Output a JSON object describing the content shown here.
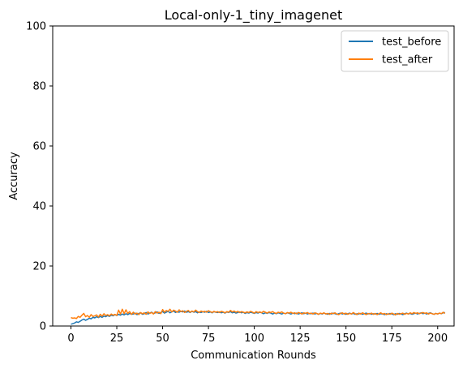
{
  "chart_data": {
    "type": "line",
    "title": "Local-only-1_tiny_imagenet",
    "xlabel": "Communication Rounds",
    "ylabel": "Accuracy",
    "xlim": [
      -9.95,
      208.95
    ],
    "ylim": [
      0,
      100
    ],
    "xticks": [
      0,
      25,
      50,
      75,
      100,
      125,
      150,
      175,
      200
    ],
    "yticks": [
      0,
      20,
      40,
      60,
      80,
      100
    ],
    "grid": false,
    "legend": "top-right",
    "x_start": 0,
    "x_step": 1,
    "series": [
      {
        "name": "test_before",
        "color": "#1f77b4",
        "values": [
          0.6,
          0.8,
          1.0,
          1.4,
          1.2,
          1.6,
          2.0,
          2.3,
          1.9,
          2.2,
          2.6,
          2.4,
          2.9,
          2.7,
          3.1,
          2.8,
          3.2,
          2.9,
          3.3,
          3.1,
          3.5,
          3.2,
          3.6,
          3.4,
          3.8,
          3.5,
          3.9,
          3.6,
          4.0,
          3.7,
          4.1,
          3.8,
          4.2,
          3.9,
          4.0,
          4.3,
          3.8,
          4.2,
          4.4,
          3.9,
          4.1,
          4.5,
          4.0,
          4.3,
          4.6,
          4.1,
          4.4,
          4.7,
          4.2,
          4.5,
          4.8,
          4.3,
          4.6,
          4.9,
          4.4,
          4.7,
          5.0,
          4.5,
          4.8,
          4.6,
          4.9,
          4.7,
          5.0,
          4.6,
          4.8,
          4.5,
          4.9,
          4.6,
          4.8,
          4.4,
          4.7,
          4.5,
          4.8,
          4.6,
          4.9,
          4.5,
          4.7,
          4.4,
          4.8,
          4.6,
          4.5,
          4.7,
          4.4,
          4.6,
          4.3,
          4.7,
          4.5,
          4.8,
          4.4,
          4.6,
          4.3,
          4.5,
          4.7,
          4.4,
          4.6,
          4.2,
          4.5,
          4.3,
          4.6,
          4.4,
          4.2,
          4.5,
          4.3,
          4.6,
          4.4,
          4.1,
          4.4,
          4.2,
          4.5,
          4.3,
          4.0,
          4.3,
          4.1,
          4.4,
          4.2,
          4.0,
          4.3,
          4.1,
          4.4,
          4.2,
          4.0,
          4.3,
          4.1,
          4.3,
          4.0,
          4.2,
          4.4,
          4.1,
          4.3,
          4.0,
          4.2,
          4.1,
          4.3,
          4.0,
          4.2,
          3.9,
          4.2,
          4.0,
          4.3,
          4.1,
          3.9,
          4.2,
          4.0,
          4.3,
          4.1,
          3.9,
          4.1,
          4.3,
          4.0,
          4.2,
          3.9,
          4.1,
          4.3,
          4.0,
          4.2,
          3.9,
          4.1,
          4.0,
          4.2,
          3.9,
          4.1,
          4.3,
          4.0,
          4.2,
          3.9,
          4.1,
          4.0,
          4.2,
          3.9,
          4.1,
          4.0,
          3.8,
          4.1,
          3.9,
          4.2,
          4.0,
          3.8,
          4.1,
          3.9,
          4.2,
          4.0,
          3.8,
          4.1,
          4.3,
          4.0,
          4.2,
          3.9,
          4.1,
          4.3,
          4.0,
          4.2,
          4.4,
          4.1,
          4.3,
          4.0,
          4.2,
          4.4,
          4.1,
          3.9,
          4.2,
          4.0,
          4.3,
          4.1,
          4.4,
          4.5
        ]
      },
      {
        "name": "test_after",
        "color": "#ff7f0e",
        "values": [
          2.8,
          2.6,
          2.7,
          2.5,
          3.2,
          2.9,
          3.6,
          4.2,
          3.1,
          3.5,
          2.9,
          3.8,
          3.2,
          3.4,
          3.7,
          3.0,
          3.9,
          3.3,
          4.1,
          3.5,
          3.8,
          3.4,
          4.0,
          3.6,
          3.9,
          3.5,
          5.3,
          4.0,
          5.6,
          4.1,
          5.4,
          4.2,
          4.8,
          3.9,
          4.6,
          4.0,
          4.3,
          3.8,
          4.5,
          4.1,
          4.4,
          3.9,
          4.7,
          4.2,
          4.5,
          4.0,
          4.8,
          4.3,
          4.6,
          4.1,
          5.5,
          4.6,
          5.2,
          4.9,
          5.6,
          4.7,
          5.3,
          5.0,
          4.6,
          5.4,
          4.8,
          5.1,
          4.5,
          4.9,
          5.2,
          4.6,
          5.0,
          4.7,
          5.3,
          4.8,
          4.5,
          5.0,
          4.7,
          4.9,
          4.6,
          5.1,
          4.8,
          4.5,
          4.9,
          4.6,
          4.8,
          4.5,
          4.9,
          4.7,
          4.4,
          4.8,
          4.6,
          5.2,
          4.7,
          5.0,
          4.6,
          4.9,
          4.5,
          4.8,
          4.6,
          4.4,
          4.7,
          4.5,
          4.9,
          4.6,
          4.3,
          4.8,
          4.5,
          4.7,
          4.4,
          4.9,
          4.6,
          4.3,
          4.7,
          4.5,
          4.8,
          4.4,
          4.2,
          4.6,
          4.4,
          4.7,
          4.3,
          4.1,
          4.5,
          4.3,
          4.6,
          4.2,
          4.4,
          4.1,
          4.5,
          4.3,
          4.0,
          4.4,
          4.2,
          4.5,
          4.1,
          4.3,
          4.0,
          4.4,
          4.2,
          3.9,
          4.3,
          4.1,
          4.4,
          4.0,
          4.2,
          3.9,
          4.3,
          4.1,
          4.4,
          4.0,
          3.8,
          4.2,
          4.4,
          4.0,
          4.3,
          3.9,
          4.2,
          4.0,
          4.5,
          4.1,
          3.8,
          4.3,
          4.0,
          4.4,
          4.1,
          3.8,
          4.2,
          4.0,
          4.3,
          3.9,
          4.2,
          3.8,
          4.1,
          4.4,
          4.0,
          4.2,
          3.8,
          4.1,
          3.9,
          4.3,
          4.0,
          3.7,
          4.2,
          3.9,
          4.1,
          4.3,
          3.9,
          4.2,
          4.0,
          4.4,
          4.1,
          4.5,
          4.2,
          4.4,
          4.1,
          4.3,
          4.5,
          4.2,
          4.4,
          4.0,
          4.3,
          4.1,
          3.9,
          4.2,
          4.0,
          4.3,
          4.1,
          4.6,
          4.2
        ]
      }
    ]
  }
}
